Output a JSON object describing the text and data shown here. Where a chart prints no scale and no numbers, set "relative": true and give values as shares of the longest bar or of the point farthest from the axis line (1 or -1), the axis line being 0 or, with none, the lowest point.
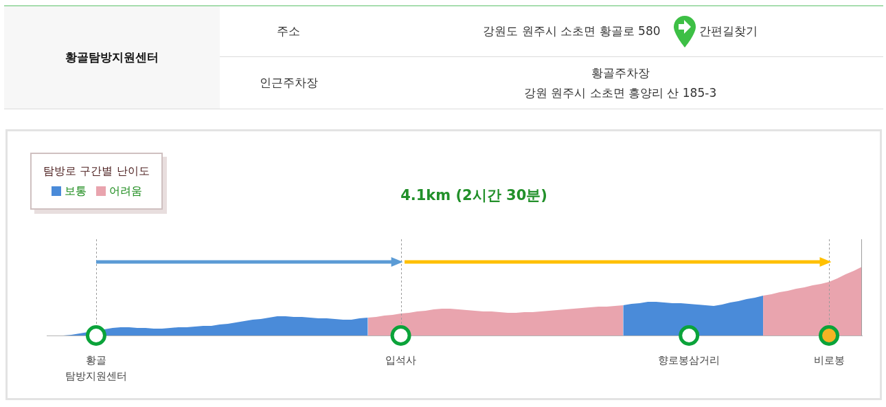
{
  "chart_data": [
    {
      "type": "other",
      "title": "황골탐방지원센터",
      "annotations": [
        "주소",
        "강원도 원주시 소초면 황골로 580",
        "간편길찾기",
        "인근주차장",
        "황골주차장",
        "강원 원주시 소초면 흥양리 산 185-3"
      ]
    },
    {
      "type": "area",
      "title": "4.1km (2시간 30분)",
      "relative": true,
      "legend": "top left",
      "legend_title": "탐방로 구간별 난이도",
      "grid": "x",
      "categories": [
        null,
        null,
        null,
        null,
        null,
        null,
        "황골 탐방지원센터",
        null,
        null,
        null,
        null,
        null,
        null,
        null,
        null,
        null,
        null,
        null,
        null,
        null,
        null,
        null,
        null,
        null,
        null,
        null,
        null,
        null,
        null,
        null,
        null,
        null,
        null,
        null,
        null,
        null,
        null,
        null,
        null,
        null,
        null,
        null,
        null,
        "입석사",
        null,
        null,
        null,
        null,
        null,
        null,
        null,
        null,
        null,
        null,
        null,
        null,
        null,
        null,
        null,
        null,
        null,
        null,
        null,
        null,
        null,
        null,
        null,
        null,
        null,
        null,
        null,
        null,
        null,
        null,
        null,
        null,
        null,
        null,
        "향로봉삼거리",
        null,
        null,
        null,
        null,
        null,
        null,
        null,
        null,
        null,
        null,
        null,
        null,
        null,
        null,
        null,
        null,
        "비로봉",
        null,
        null,
        null,
        null
      ],
      "series": [
        {
          "name": "보통",
          "color": "#4a8bd9",
          "values": [
            0,
            0,
            0,
            0.01,
            0.03,
            0.05,
            null,
            0.09,
            0.11,
            0.12,
            0.12,
            0.11,
            0.11,
            0.1,
            0.1,
            0.11,
            0.12,
            0.12,
            0.13,
            0.14,
            0.14,
            0.16,
            0.17,
            0.19,
            0.21,
            0.23,
            0.24,
            0.26,
            0.28,
            0.28,
            0.27,
            0.27,
            0.26,
            0.25,
            0.25,
            0.24,
            0.23,
            0.23,
            0.25,
            0.26,
            null,
            null,
            null,
            null,
            null,
            null,
            null,
            null,
            null,
            null,
            null,
            null,
            null,
            null,
            null,
            null,
            null,
            null,
            null,
            null,
            null,
            null,
            null,
            null,
            null,
            null,
            null,
            null,
            null,
            null,
            0.44,
            0.46,
            0.47,
            0.49,
            0.49,
            0.48,
            0.47,
            0.47,
            0.46,
            0.45,
            0.44,
            0.43,
            0.45,
            0.48,
            0.5,
            0.53,
            0.55,
            0.58,
            null,
            null,
            null,
            null,
            null,
            null,
            null,
            null,
            null,
            null,
            null,
            null
          ]
        },
        {
          "name": "어려움",
          "color": "#e9a4ae",
          "values": [
            null,
            null,
            null,
            null,
            null,
            null,
            null,
            null,
            null,
            null,
            null,
            null,
            null,
            null,
            null,
            null,
            null,
            null,
            null,
            null,
            null,
            null,
            null,
            null,
            null,
            null,
            null,
            null,
            null,
            null,
            null,
            null,
            null,
            null,
            null,
            null,
            null,
            null,
            null,
            0.26,
            0.27,
            0.29,
            0.3,
            0.32,
            0.33,
            0.35,
            0.36,
            0.38,
            0.39,
            0.39,
            0.38,
            0.37,
            0.36,
            0.35,
            0.35,
            0.34,
            0.33,
            0.33,
            0.34,
            0.34,
            0.35,
            0.36,
            0.37,
            0.38,
            0.39,
            0.4,
            0.41,
            0.42,
            0.42,
            0.43,
            0.44,
            null,
            null,
            null,
            null,
            null,
            null,
            null,
            null,
            null,
            null,
            null,
            null,
            null,
            null,
            null,
            null,
            0.58,
            0.6,
            0.63,
            0.65,
            0.68,
            0.7,
            0.73,
            0.75,
            0.78,
            0.83,
            0.89,
            0.94,
            1
          ]
        },
        {
          "type": "scatter",
          "color": "#0ba33a",
          "marker": "circle",
          "colors": [
            null,
            null,
            null,
            null,
            null,
            null,
            "#ffffff",
            null,
            null,
            null,
            null,
            null,
            null,
            null,
            null,
            null,
            null,
            null,
            null,
            null,
            null,
            null,
            null,
            null,
            null,
            null,
            null,
            null,
            null,
            null,
            null,
            null,
            null,
            null,
            null,
            null,
            null,
            null,
            null,
            null,
            null,
            null,
            null,
            "#ffffff",
            null,
            null,
            null,
            null,
            null,
            null,
            null,
            null,
            null,
            null,
            null,
            null,
            null,
            null,
            null,
            null,
            null,
            null,
            null,
            null,
            null,
            null,
            null,
            null,
            null,
            null,
            null,
            null,
            null,
            null,
            null,
            null,
            null,
            null,
            "#ffffff",
            null,
            null,
            null,
            null,
            null,
            null,
            null,
            null,
            null,
            null,
            null,
            null,
            null,
            null,
            null,
            null,
            "#f6b324",
            null,
            null,
            null,
            null
          ],
          "values": [
            null,
            null,
            null,
            null,
            null,
            null,
            0,
            null,
            null,
            null,
            null,
            null,
            null,
            null,
            null,
            null,
            null,
            null,
            null,
            null,
            null,
            null,
            null,
            null,
            null,
            null,
            null,
            null,
            null,
            null,
            null,
            null,
            null,
            null,
            null,
            null,
            null,
            null,
            null,
            null,
            null,
            null,
            null,
            0,
            null,
            null,
            null,
            null,
            null,
            null,
            null,
            null,
            null,
            null,
            null,
            null,
            null,
            null,
            null,
            null,
            null,
            null,
            null,
            null,
            null,
            null,
            null,
            null,
            null,
            null,
            null,
            null,
            null,
            null,
            null,
            null,
            null,
            null,
            0,
            null,
            null,
            null,
            null,
            null,
            null,
            null,
            null,
            null,
            null,
            null,
            null,
            null,
            null,
            null,
            null,
            0,
            null,
            null,
            null,
            null
          ]
        }
      ]
    }
  ]
}
